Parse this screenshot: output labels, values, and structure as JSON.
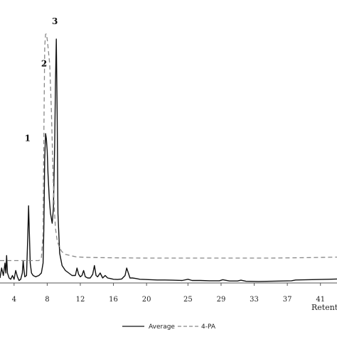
{
  "chart_data": {
    "type": "line",
    "title": "",
    "xlabel": "Retention",
    "ylabel": "",
    "xlim": [
      2.3,
      43
    ],
    "ylim": [
      0,
      108
    ],
    "x_ticks": [
      4,
      8,
      12,
      16,
      20,
      25,
      29,
      33,
      37,
      41
    ],
    "grid": false,
    "legend": {
      "placement": "bottom-center",
      "entries": [
        "Average",
        "4-PA"
      ]
    },
    "annotations": [
      {
        "text": "1",
        "x": 5.8,
        "y": 57
      },
      {
        "text": "2",
        "x": 7.8,
        "y": 87
      },
      {
        "text": "3",
        "x": 9.1,
        "y": 104
      }
    ],
    "series": [
      {
        "name": "Average",
        "style": "solid",
        "color": "#111111",
        "x": [
          2.3,
          2.5,
          2.7,
          2.9,
          3.0,
          3.1,
          3.2,
          3.4,
          3.6,
          3.8,
          4.0,
          4.2,
          4.4,
          4.6,
          4.8,
          5.0,
          5.1,
          5.2,
          5.3,
          5.5,
          5.65,
          5.75,
          5.85,
          5.95,
          6.1,
          6.3,
          6.6,
          7.0,
          7.3,
          7.5,
          7.6,
          7.7,
          7.8,
          7.9,
          8.0,
          8.1,
          8.25,
          8.4,
          8.6,
          8.75,
          8.9,
          9.0,
          9.1,
          9.2,
          9.3,
          9.5,
          9.8,
          10.2,
          10.6,
          11.0,
          11.4,
          11.6,
          11.8,
          12.0,
          12.2,
          12.4,
          12.6,
          12.9,
          13.2,
          13.5,
          13.7,
          13.9,
          14.1,
          14.4,
          14.7,
          15.0,
          15.3,
          15.6,
          16.0,
          16.5,
          17.0,
          17.4,
          17.6,
          17.8,
          18.0,
          18.3,
          18.7,
          19.2,
          19.8,
          20.5,
          21.3,
          22.2,
          23.2,
          24.3,
          25.0,
          25.5,
          26.5,
          27.6,
          28.8,
          29.2,
          30.0,
          31.0,
          31.4,
          32.0,
          33.5,
          35.0,
          36.5,
          37.5,
          38.0,
          39.5,
          41.0,
          42.0,
          43.0
        ],
        "y": [
          2,
          6,
          3,
          8,
          4,
          11,
          4,
          2,
          1.5,
          3,
          1.5,
          5,
          2.5,
          1,
          1.5,
          4,
          9,
          5,
          2.5,
          3,
          18,
          31,
          20,
          8,
          4,
          3,
          2.5,
          3,
          4,
          8,
          22,
          50,
          60,
          58,
          53,
          44,
          34,
          28,
          24,
          30,
          55,
          80,
          98,
          68,
          28,
          12,
          7,
          5,
          4,
          3,
          3,
          6,
          3.5,
          2.5,
          3,
          5,
          2.5,
          2,
          2,
          3.5,
          7,
          3,
          2.5,
          4,
          2,
          3,
          2,
          1.8,
          1.5,
          1.4,
          1.6,
          3,
          6,
          4,
          2,
          2,
          1.8,
          1.5,
          1.4,
          1.3,
          1.2,
          1.2,
          1.1,
          1.0,
          1.5,
          1.0,
          1.0,
          0.9,
          0.9,
          1.3,
          0.8,
          0.8,
          1.1,
          0.7,
          0.6,
          0.7,
          0.8,
          0.9,
          1.2,
          1.3,
          1.4,
          1.5,
          1.6
        ]
      },
      {
        "name": "4-PA",
        "style": "dashed",
        "color": "#888888",
        "x": [
          2.3,
          5.0,
          7.0,
          7.3,
          7.5,
          7.6,
          7.7,
          7.8,
          7.9,
          8.0,
          8.1,
          8.3,
          8.5,
          8.7,
          8.85,
          9.0,
          9.2,
          9.5,
          9.8,
          10.2,
          10.8,
          11.5,
          12.5,
          14.0,
          16.0,
          20.0,
          25.0,
          30.0,
          35.0,
          40.0,
          43.0
        ],
        "y": [
          9,
          9,
          9,
          10,
          20,
          60,
          95,
          100,
          100,
          98,
          95,
          88,
          70,
          45,
          30,
          22,
          17,
          14,
          12.5,
          11.5,
          11,
          10.5,
          10.3,
          10.2,
          10.1,
          10,
          10,
          10,
          10,
          10.2,
          10.4
        ]
      }
    ]
  }
}
